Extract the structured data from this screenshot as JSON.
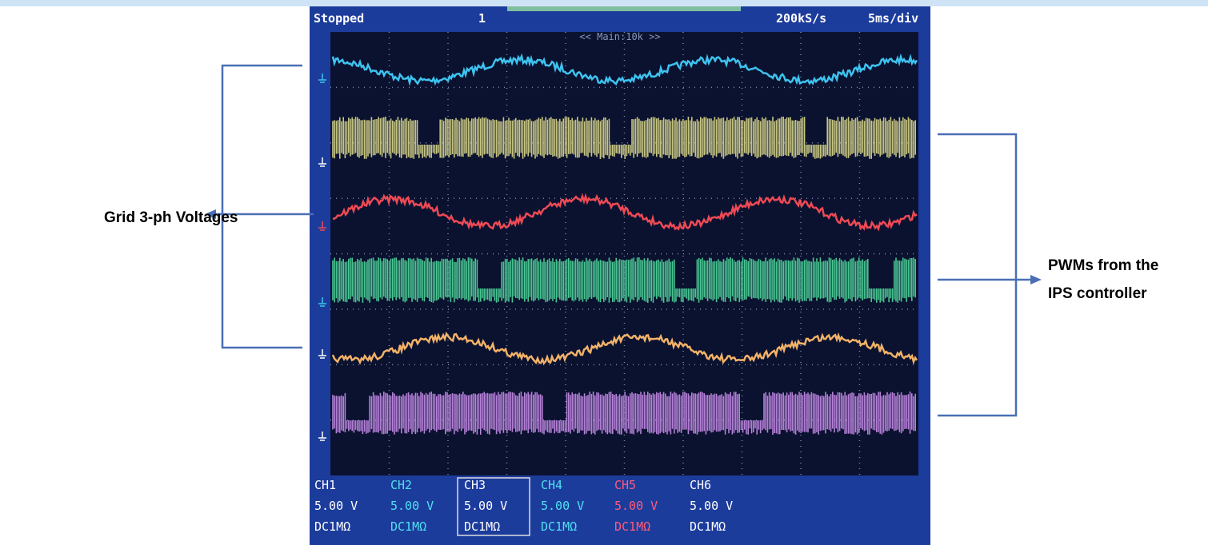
{
  "header": {
    "status": "Stopped",
    "trigger_channel": "1",
    "sample_rate": "200kS/s",
    "time_div": "5ms/div",
    "zoom": "<< Main:10k >>"
  },
  "channels": [
    {
      "name": "CH1",
      "scale": "5.00 V",
      "coupling": "DC1MΩ"
    },
    {
      "name": "CH2",
      "scale": "5.00 V",
      "coupling": "DC1MΩ"
    },
    {
      "name": "CH3",
      "scale": "5.00 V",
      "coupling": "DC1MΩ"
    },
    {
      "name": "CH4",
      "scale": "5.00 V",
      "coupling": "DC1MΩ"
    },
    {
      "name": "CH5",
      "scale": "5.00 V",
      "coupling": "DC1MΩ"
    },
    {
      "name": "CH6",
      "scale": "5.00 V",
      "coupling": "DC1MΩ"
    }
  ],
  "annotations": {
    "left": "Grid 3-ph Voltages",
    "right": [
      "PWMs from the",
      "IPS controller"
    ]
  }
}
